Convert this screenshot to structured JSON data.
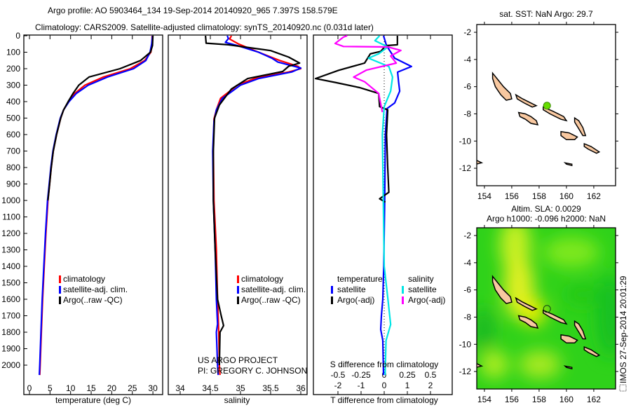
{
  "header": {
    "title_line1": "Argo profile: AO 5903464_134 19-Sep-2014 20140920_965 7.397S 158.579E",
    "title_line2": "Climatology: CARS2009. Satellite-adjusted climatology: synTS_20140920.nc (0.031d later)"
  },
  "credits": {
    "line1": "US ARGO PROJECT",
    "line2": "PI: GREGORY C. JOHNSON"
  },
  "imos_stamp": "IMOS 27-Sep-2014 20:01:29",
  "colors": {
    "climatology": "#ff0000",
    "satellite": "#0000ff",
    "argo": "#000000",
    "sal_satellite": "#00e5e5",
    "sal_argo": "#ff00ff",
    "land": "#f8c8a0",
    "float": "#66dd00"
  },
  "chart_data": [
    {
      "type": "line",
      "name": "temperature-profile",
      "xlabel": "temperature (deg C)",
      "ylabel": "",
      "xlim": [
        -1.5,
        32
      ],
      "ylim": [
        2060,
        0
      ],
      "xticks": [
        0,
        5,
        10,
        15,
        20,
        25,
        30
      ],
      "yticks": [
        0,
        100,
        200,
        300,
        400,
        500,
        600,
        700,
        800,
        900,
        1000,
        1100,
        1200,
        1300,
        1400,
        1500,
        1600,
        1700,
        1800,
        1900,
        2000
      ],
      "legend": [
        "climatology",
        "satellite-adj. clim.",
        "Argo(..raw -QC)"
      ],
      "series": [
        {
          "name": "climatology",
          "color": "#ff0000",
          "points": [
            [
              0,
              29.8
            ],
            [
              50,
              29.8
            ],
            [
              100,
              29.5
            ],
            [
              150,
              28
            ],
            [
              200,
              24.5
            ],
            [
              250,
              18
            ],
            [
              300,
              13.5
            ],
            [
              350,
              11
            ],
            [
              400,
              9.5
            ],
            [
              450,
              8.3
            ],
            [
              500,
              7.6
            ],
            [
              600,
              6.6
            ],
            [
              700,
              5.8
            ],
            [
              800,
              5.3
            ],
            [
              900,
              4.9
            ],
            [
              1000,
              4.5
            ],
            [
              1200,
              4.0
            ],
            [
              1400,
              3.6
            ],
            [
              1600,
              3.2
            ],
            [
              1800,
              2.9
            ],
            [
              2000,
              2.6
            ],
            [
              2060,
              2.5
            ]
          ]
        },
        {
          "name": "satellite-adj. clim.",
          "color": "#0000ff",
          "points": [
            [
              0,
              29.9
            ],
            [
              50,
              29.7
            ],
            [
              100,
              29.3
            ],
            [
              150,
              28.3
            ],
            [
              200,
              25.3
            ],
            [
              250,
              19
            ],
            [
              300,
              14.3
            ],
            [
              350,
              11.4
            ],
            [
              400,
              9.6
            ],
            [
              450,
              8.3
            ],
            [
              500,
              7.5
            ],
            [
              600,
              6.5
            ],
            [
              700,
              5.7
            ],
            [
              800,
              5.2
            ],
            [
              900,
              4.8
            ],
            [
              1000,
              4.4
            ],
            [
              1200,
              3.9
            ],
            [
              1400,
              3.5
            ],
            [
              1600,
              3.1
            ],
            [
              1800,
              2.8
            ],
            [
              2000,
              2.5
            ],
            [
              2060,
              2.4
            ]
          ]
        },
        {
          "name": "Argo(..raw -QC)",
          "color": "#000000",
          "points": [
            [
              0,
              30
            ],
            [
              60,
              29.9
            ],
            [
              100,
              29.4
            ],
            [
              150,
              27
            ],
            [
              200,
              22
            ],
            [
              250,
              14.5
            ],
            [
              300,
              12
            ],
            [
              350,
              10.6
            ],
            [
              400,
              9.4
            ],
            [
              450,
              8.3
            ],
            [
              500,
              7.6
            ],
            [
              600,
              6.6
            ],
            [
              700,
              5.8
            ],
            [
              800,
              5.3
            ],
            [
              900,
              4.9
            ],
            [
              1000,
              4.5
            ]
          ]
        }
      ]
    },
    {
      "type": "line",
      "name": "salinity-profile",
      "xlabel": "salinity",
      "xlim": [
        33.8,
        36.1
      ],
      "ylim": [
        2060,
        0
      ],
      "xticks": [
        34,
        34.5,
        35,
        35.5,
        36
      ],
      "legend": [
        "climatology",
        "satellite-adj. clim.",
        "Argo(..raw -QC)"
      ],
      "series": [
        {
          "name": "climatology",
          "color": "#ff0000",
          "points": [
            [
              0,
              34.85
            ],
            [
              20,
              34.82
            ],
            [
              50,
              34.97
            ],
            [
              100,
              35.3
            ],
            [
              150,
              35.65
            ],
            [
              185,
              35.95
            ],
            [
              200,
              36.0
            ],
            [
              220,
              35.8
            ],
            [
              260,
              35.23
            ],
            [
              300,
              34.95
            ],
            [
              380,
              34.67
            ],
            [
              450,
              34.6
            ],
            [
              506,
              34.56
            ],
            [
              700,
              34.55
            ],
            [
              1000,
              34.56
            ],
            [
              1300,
              34.6
            ],
            [
              1600,
              34.62
            ],
            [
              1800,
              34.64
            ],
            [
              2000,
              34.65
            ],
            [
              2060,
              34.66
            ]
          ]
        },
        {
          "name": "satellite-adj. clim.",
          "color": "#0000ff",
          "points": [
            [
              0,
              34.78
            ],
            [
              17,
              34.8
            ],
            [
              40,
              34.75
            ],
            [
              60,
              34.95
            ],
            [
              100,
              35.3
            ],
            [
              136,
              35.52
            ],
            [
              160,
              35.62
            ],
            [
              196,
              36.0
            ],
            [
              220,
              35.85
            ],
            [
              260,
              35.3
            ],
            [
              300,
              35.0
            ],
            [
              380,
              34.7
            ],
            [
              450,
              34.6
            ],
            [
              520,
              34.56
            ],
            [
              700,
              34.54
            ],
            [
              1000,
              34.55
            ],
            [
              1300,
              34.58
            ],
            [
              1600,
              34.6
            ],
            [
              1750,
              34.62
            ],
            [
              1800,
              34.6
            ],
            [
              2000,
              34.62
            ],
            [
              2060,
              34.63
            ]
          ]
        },
        {
          "name": "Argo(..raw -QC)",
          "color": "#000000",
          "points": [
            [
              0,
              34.42
            ],
            [
              45,
              34.43
            ],
            [
              55,
              34.8
            ],
            [
              90,
              35.5
            ],
            [
              130,
              35.8
            ],
            [
              166,
              35.98
            ],
            [
              185,
              35.8
            ],
            [
              217,
              35.7
            ],
            [
              260,
              35.12
            ],
            [
              323,
              34.85
            ],
            [
              421,
              34.65
            ],
            [
              500,
              34.57
            ],
            [
              700,
              34.55
            ],
            [
              1000,
              34.55
            ],
            [
              1300,
              34.58
            ],
            [
              1600,
              34.62
            ],
            [
              1700,
              34.68
            ],
            [
              1760,
              34.72
            ],
            [
              1800,
              34.66
            ],
            [
              2000,
              34.65
            ]
          ]
        }
      ]
    },
    {
      "type": "line",
      "name": "difference-profile",
      "xlabel": "T difference from climatology",
      "x2label": "S difference from climatology",
      "xlim": [
        -3,
        3
      ],
      "x2lim": [
        -0.75,
        0.75
      ],
      "xticks": [
        -2,
        -1,
        0,
        1,
        2
      ],
      "x2ticks": [
        "-0.5",
        "-0.25",
        "0",
        "0.25",
        "0.5"
      ],
      "x2tick_values": [
        -0.5,
        -0.25,
        0,
        0.25,
        0.5
      ],
      "legend": {
        "temperature": "temperature",
        "salinity": "salinity",
        "t_satellite": "satellite",
        "t_argo": "Argo(-adj)",
        "s_satellite": "satellite",
        "s_argo": "Argo(-adj)"
      },
      "series": [
        {
          "name": "T satellite",
          "var": "T",
          "color": "#0000ff",
          "points": [
            [
              0,
              -0.03
            ],
            [
              60,
              0.1
            ],
            [
              136,
              0.45
            ],
            [
              187,
              1.18
            ],
            [
              221,
              0.58
            ],
            [
              280,
              0.62
            ],
            [
              336,
              0.67
            ],
            [
              408,
              0.45
            ],
            [
              442,
              0.12
            ],
            [
              600,
              0.05
            ],
            [
              1000,
              0.02
            ],
            [
              1400,
              -0.02
            ],
            [
              1600,
              -0.06
            ],
            [
              1700,
              -0.12
            ],
            [
              1783,
              -0.15
            ],
            [
              1850,
              -0.06
            ],
            [
              2060,
              -0.03
            ]
          ]
        },
        {
          "name": "T Argo(-adj)",
          "var": "T",
          "color": "#000000",
          "points": [
            [
              0,
              0.57
            ],
            [
              55,
              0.57
            ],
            [
              60,
              0.06
            ],
            [
              95,
              -0.15
            ],
            [
              110,
              -0.6
            ],
            [
              166,
              -0.85
            ],
            [
              210,
              -1.97
            ],
            [
              260,
              -2.97
            ],
            [
              285,
              -2.06
            ],
            [
              315,
              -1.06
            ],
            [
              350,
              -0.24
            ],
            [
              430,
              -0.2
            ],
            [
              450,
              0.15
            ],
            [
              600,
              0.1
            ],
            [
              800,
              0.15
            ],
            [
              950,
              0.2
            ],
            [
              990,
              -0.2
            ],
            [
              1010,
              0.05
            ]
          ]
        },
        {
          "name": "S satellite",
          "var": "S",
          "color": "#00e5e5",
          "points": [
            [
              0,
              -0.05
            ],
            [
              30,
              -0.1
            ],
            [
              68,
              0.04
            ],
            [
              110,
              -0.06
            ],
            [
              136,
              -0.17
            ],
            [
              187,
              0.05
            ],
            [
              251,
              0.09
            ],
            [
              336,
              0.07
            ],
            [
              430,
              0.0
            ],
            [
              600,
              -0.02
            ],
            [
              1000,
              -0.01
            ],
            [
              1400,
              0.0
            ],
            [
              1600,
              0.04
            ],
            [
              1753,
              0.07
            ],
            [
              1850,
              0.02
            ],
            [
              2060,
              0.01
            ]
          ]
        },
        {
          "name": "S Argo(-adj)",
          "var": "S",
          "color": "#ff00ff",
          "points": [
            [
              0,
              -0.4
            ],
            [
              8,
              -0.44
            ],
            [
              47,
              -0.53
            ],
            [
              65,
              -0.44
            ],
            [
              68,
              0.04
            ],
            [
              89,
              0.18
            ],
            [
              123,
              0.07
            ],
            [
              166,
              0.13
            ],
            [
              208,
              -0.19
            ],
            [
              251,
              -0.33
            ],
            [
              280,
              -0.21
            ],
            [
              350,
              -0.06
            ],
            [
              464,
              -0.02
            ]
          ]
        }
      ]
    }
  ],
  "maps": [
    {
      "name": "sst-map",
      "title": "sat. SST: NaN Argo: 29.7",
      "lon_ticks": [
        154,
        156,
        158,
        160,
        162
      ],
      "lat_ticks": [
        -2,
        -4,
        -6,
        -8,
        -10,
        -12
      ],
      "float_lon": 158.579,
      "float_lat": -7.397
    },
    {
      "name": "sla-map",
      "title_line1": "Altim. SLA: 0.0029",
      "title_line2": "Argo h1000: -0.096 h2000: NaN",
      "lon_ticks": [
        154,
        156,
        158,
        160,
        162
      ],
      "lat_ticks": [
        -2,
        -4,
        -6,
        -8,
        -10,
        -12
      ],
      "float_lon": 158.579,
      "float_lat": -7.397
    }
  ]
}
